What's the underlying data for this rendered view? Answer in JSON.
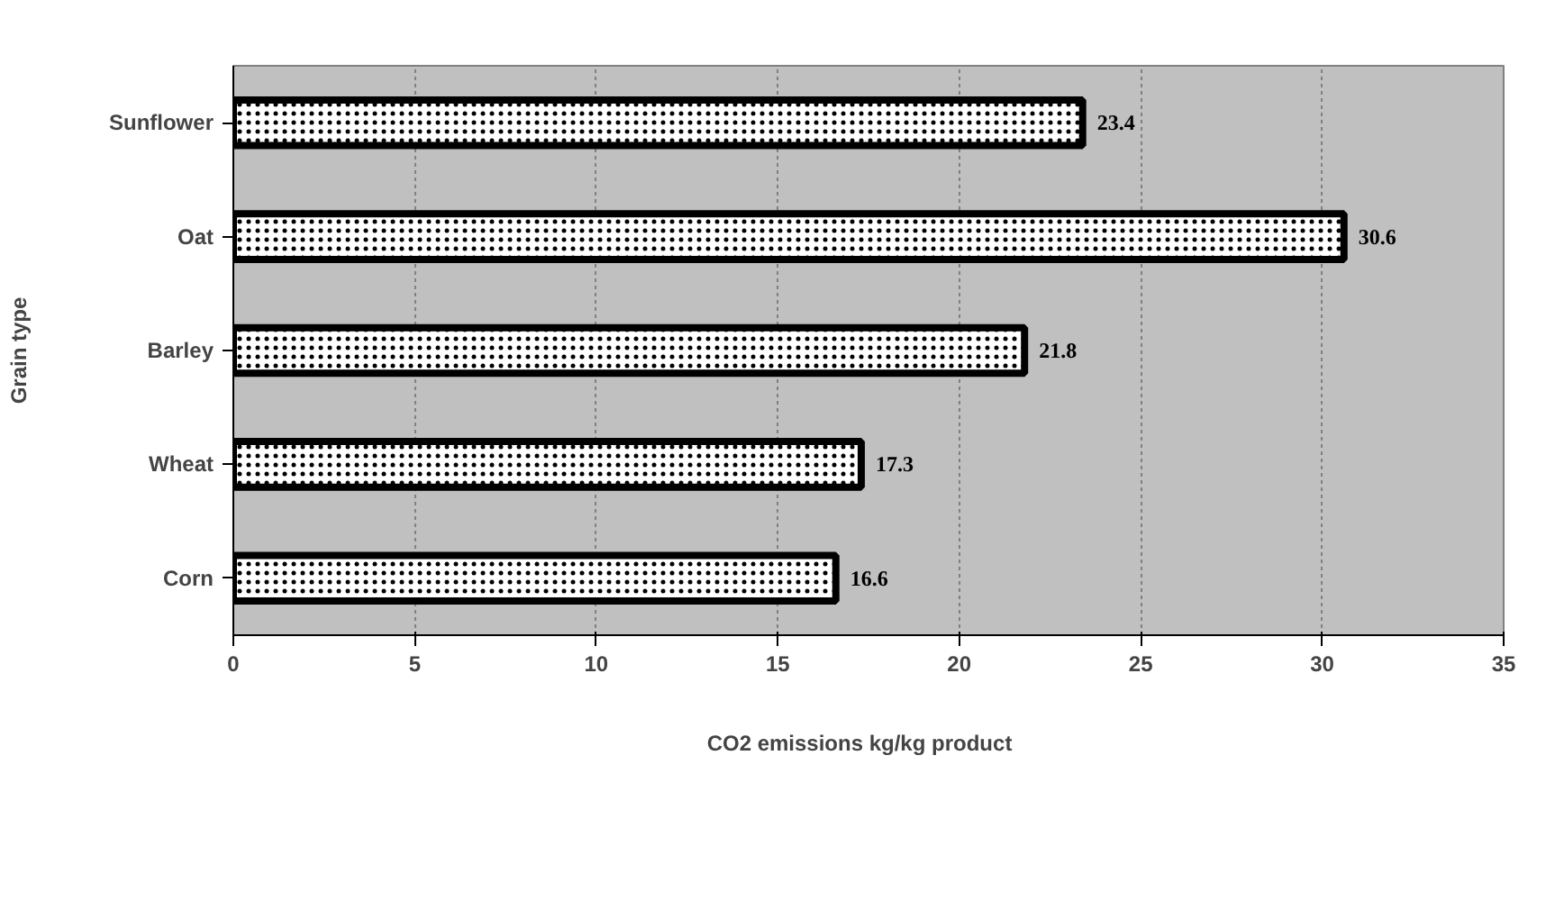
{
  "chart_data": {
    "type": "bar",
    "orientation": "horizontal",
    "xlabel": "CO2 emissions    kg/kg product",
    "ylabel": "Grain type",
    "categories": [
      "Sunflower",
      "Oat",
      "Barley",
      "Wheat",
      "Corn"
    ],
    "values": [
      23.4,
      30.6,
      21.8,
      17.3,
      16.6
    ],
    "color": "#ffffff",
    "xlim": [
      0,
      35
    ],
    "xticks": [
      0,
      5,
      10,
      15,
      20,
      25,
      30,
      35
    ],
    "grid": "x",
    "data_labels": true
  }
}
